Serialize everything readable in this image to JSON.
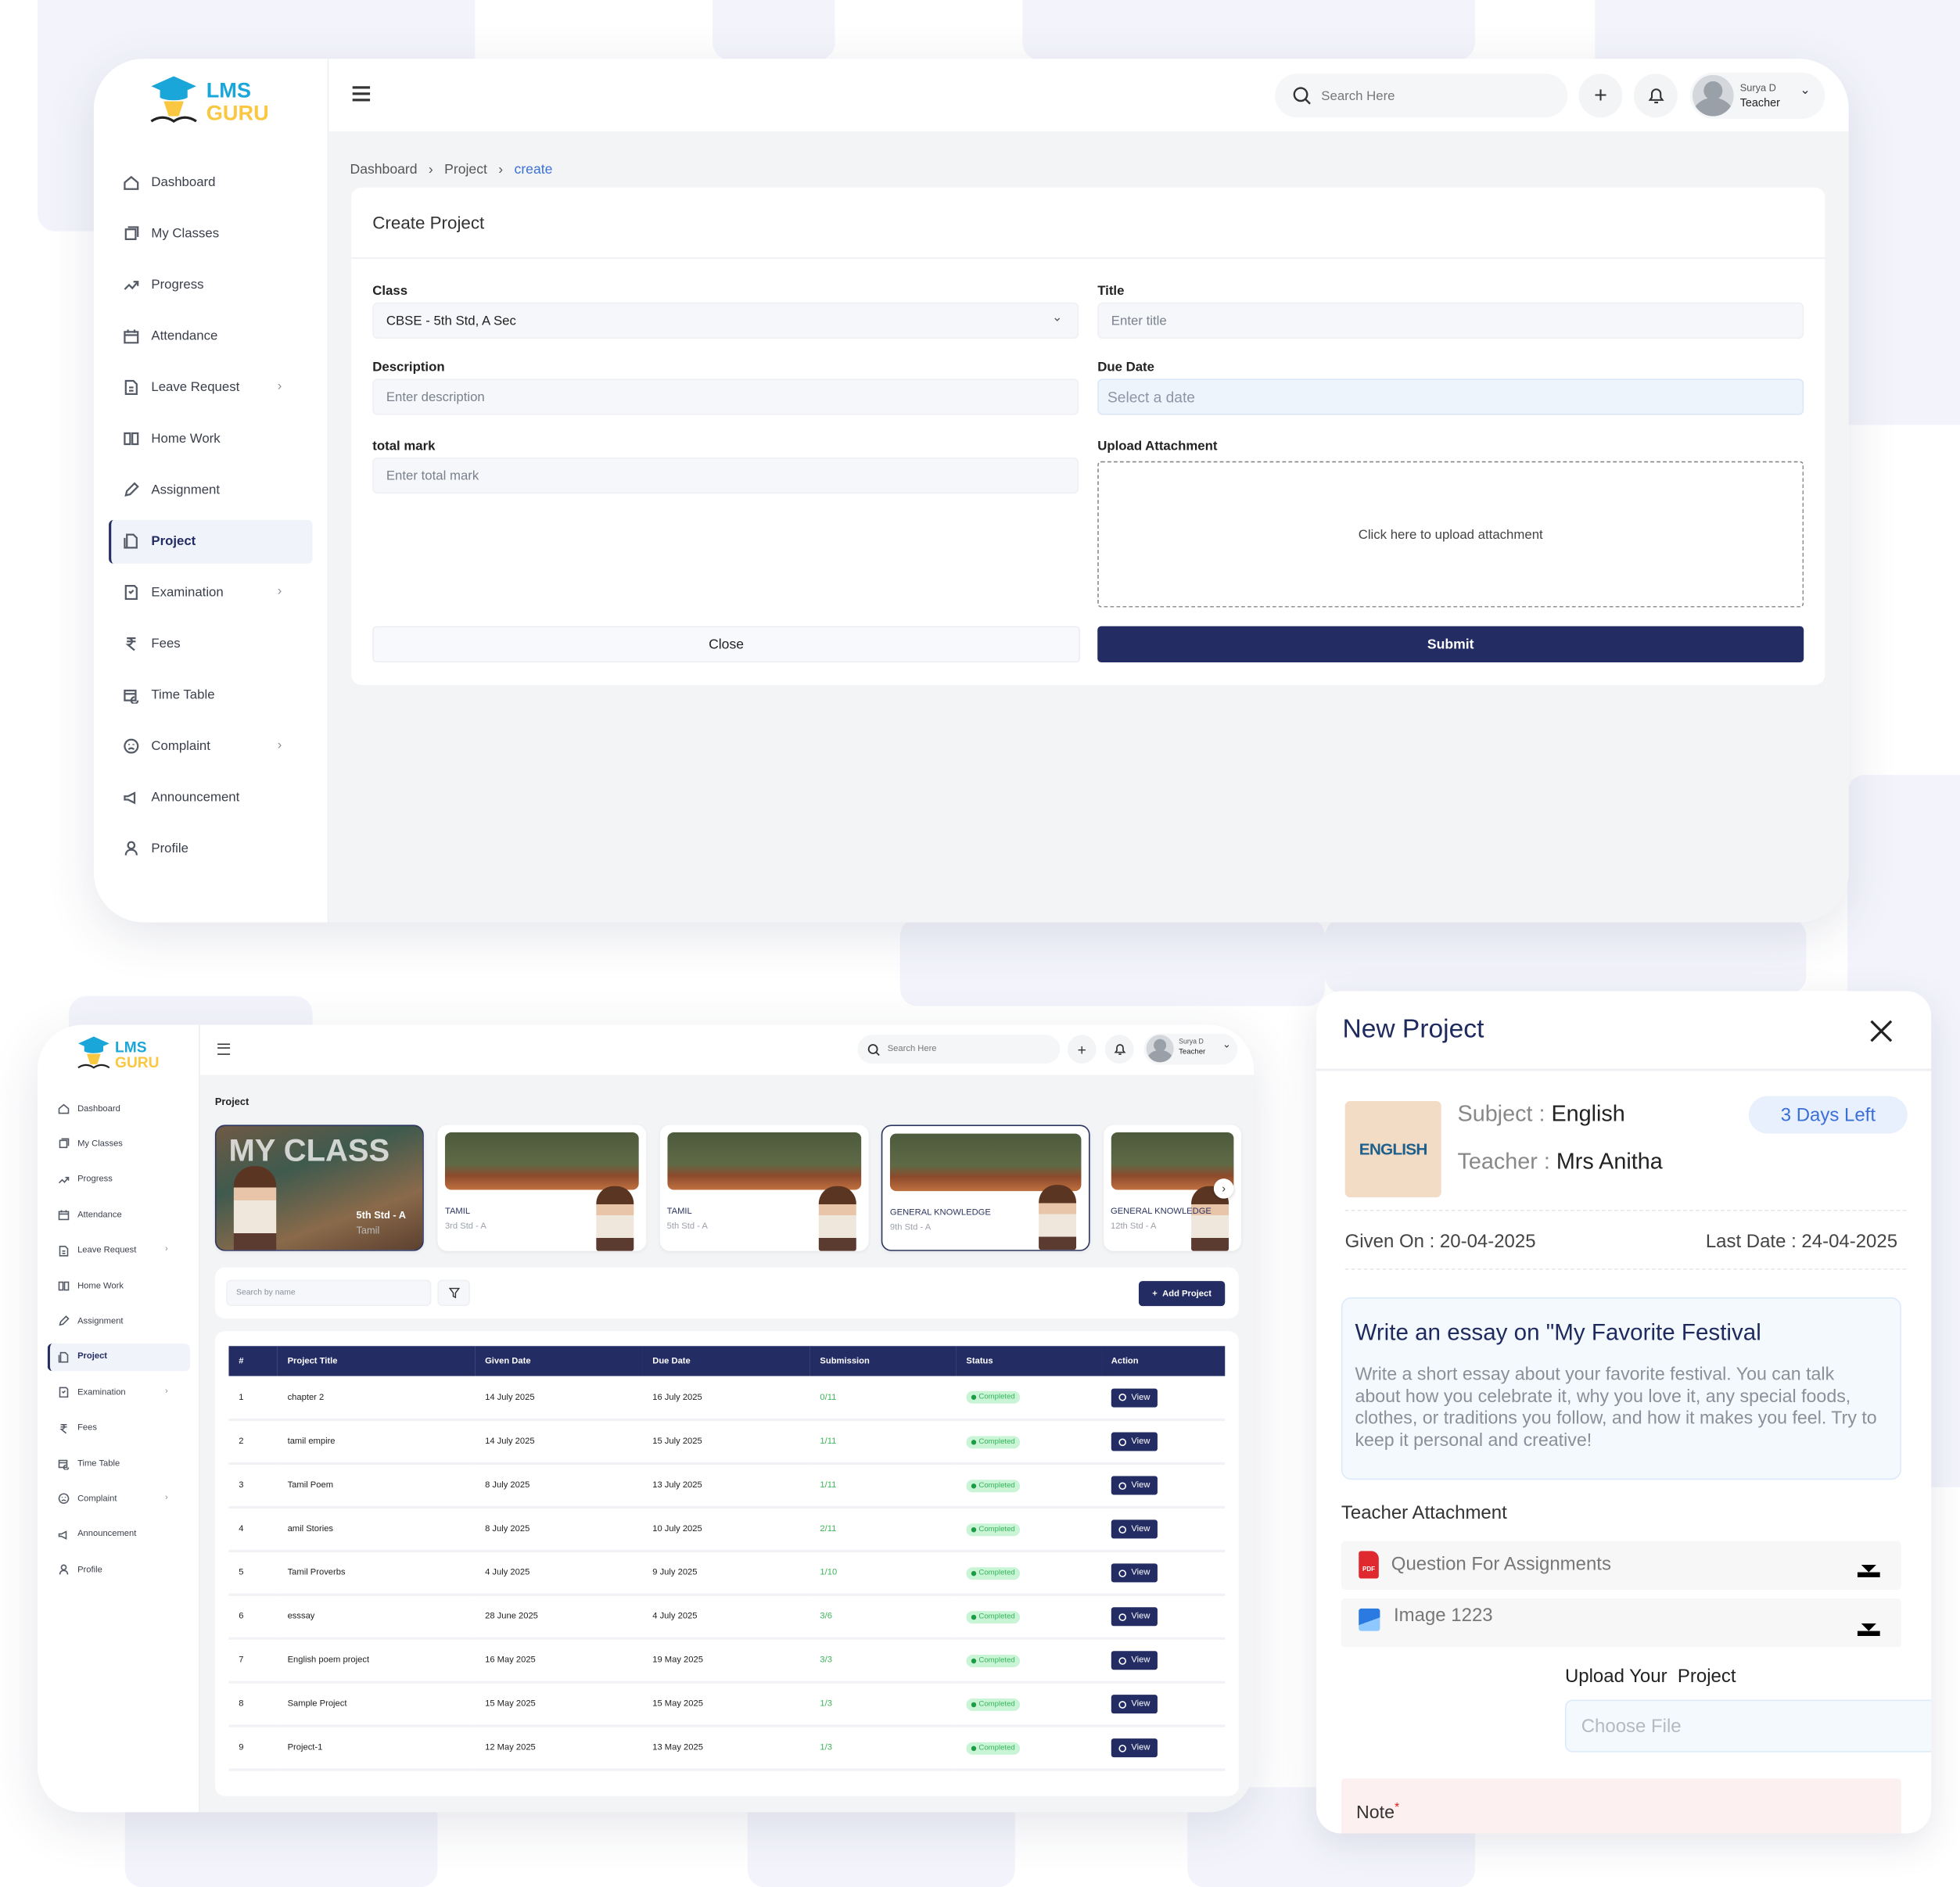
{
  "brand": {
    "line1": "LMS",
    "line2": "GURU",
    "primary": "#1aa6d8",
    "secondary": "#f9c740",
    "navy": "#232c63"
  },
  "sidebar": {
    "items": [
      {
        "label": "Dashboard",
        "icon": "home-icon"
      },
      {
        "label": "My Classes",
        "icon": "classes-icon"
      },
      {
        "label": "Progress",
        "icon": "trend-icon"
      },
      {
        "label": "Attendance",
        "icon": "calendar-icon"
      },
      {
        "label": "Leave Request",
        "icon": "document-icon",
        "chevron": true
      },
      {
        "label": "Home Work",
        "icon": "book-icon"
      },
      {
        "label": "Assignment",
        "icon": "pencil-icon"
      },
      {
        "label": "Project",
        "icon": "project-icon",
        "active": true
      },
      {
        "label": "Examination",
        "icon": "exam-icon",
        "chevron": true
      },
      {
        "label": "Fees",
        "icon": "rupee-icon"
      },
      {
        "label": "Time Table",
        "icon": "timetable-icon"
      },
      {
        "label": "Complaint",
        "icon": "complaint-icon",
        "chevron": true
      },
      {
        "label": "Announcement",
        "icon": "megaphone-icon"
      },
      {
        "label": "Profile",
        "icon": "user-icon"
      }
    ]
  },
  "header": {
    "search_placeholder": "Search Here",
    "user_name": "Surya D",
    "user_role": "Teacher"
  },
  "create": {
    "breadcrumb": [
      "Dashboard",
      "Project",
      "create"
    ],
    "title": "Create Project",
    "class_label": "Class",
    "class_value": "CBSE - 5th Std, A Sec",
    "title_label": "Title",
    "title_placeholder": "Enter title",
    "desc_label": "Description",
    "desc_placeholder": "Enter description",
    "due_label": "Due Date",
    "due_placeholder": "Select a date",
    "mark_label": "total mark",
    "mark_placeholder": "Enter total mark",
    "upload_label": "Upload Attachment",
    "upload_text": "Click here to upload attachment",
    "close": "Close",
    "submit": "Submit"
  },
  "list": {
    "page_title": "Project",
    "featured": {
      "title": "MY CLASS",
      "class": "5th Std - A",
      "subject": "Tamil"
    },
    "cards": [
      {
        "subject": "TAMIL",
        "class": "3rd Std - A"
      },
      {
        "subject": "TAMIL",
        "class": "5th Std - A"
      },
      {
        "subject": "GENERAL KNOWLEDGE",
        "class": "9th Std - A",
        "selected": true
      },
      {
        "subject": "GENERAL KNOWLEDGE",
        "class": "12th Std - A"
      }
    ],
    "search_placeholder": "Search by name",
    "add_button": "Add Project",
    "columns": [
      "#",
      "Project Title",
      "Given Date",
      "Due Date",
      "Submission",
      "Status",
      "Action"
    ],
    "rows": [
      [
        "1",
        "chapter 2",
        "14 July 2025",
        "16 July 2025",
        "0/11",
        "Completed",
        "View"
      ],
      [
        "2",
        "tamil empire",
        "14 July 2025",
        "15 July 2025",
        "1/11",
        "Completed",
        "View"
      ],
      [
        "3",
        "Tamil Poem",
        "8 July 2025",
        "13 July 2025",
        "1/11",
        "Completed",
        "View"
      ],
      [
        "4",
        "amil Stories",
        "8 July 2025",
        "10 July 2025",
        "2/11",
        "Completed",
        "View"
      ],
      [
        "5",
        "Tamil Proverbs",
        "4 July 2025",
        "9 July 2025",
        "1/10",
        "Completed",
        "View"
      ],
      [
        "6",
        "esssay",
        "28 June 2025",
        "4 July 2025",
        "3/6",
        "Completed",
        "View"
      ],
      [
        "7",
        "English poem project",
        "16 May 2025",
        "19 May 2025",
        "3/3",
        "Completed",
        "View"
      ],
      [
        "8",
        "Sample Project",
        "15 May 2025",
        "15 May 2025",
        "1/3",
        "Completed",
        "View"
      ],
      [
        "9",
        "Project-1",
        "12 May 2025",
        "13 May 2025",
        "1/3",
        "Completed",
        "View"
      ]
    ]
  },
  "panel": {
    "title": "New Project",
    "subject_label": "Subject : ",
    "subject": "English",
    "teacher_label": "Teacher : ",
    "teacher": "Mrs Anitha",
    "days_left": "3 Days Left",
    "image_text": "ENGLISH",
    "given_label": "Given On : ",
    "given": "20-04-2025",
    "last_label": "Last Date : ",
    "last": "24-04-2025",
    "task_title": "Write an essay on \"My Favorite Festival",
    "task_body": "Write a short essay about your favorite festival. You can talk about how you celebrate it, why you love it, any special foods, clothes, or traditions you follow, and how it makes you feel. Try to keep it personal and creative!",
    "attach_label": "Teacher Attachment",
    "attachments": [
      {
        "name": "Question For Assignments",
        "type": "PDF"
      },
      {
        "name": "Image 1223",
        "type": "image"
      }
    ],
    "upload_label": "Upload Your  Project",
    "file_placeholder": "Choose File",
    "note_label": "Note",
    "note_required": "*"
  }
}
